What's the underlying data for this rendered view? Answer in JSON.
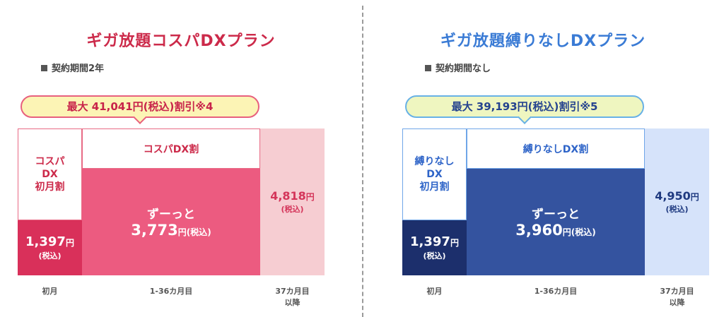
{
  "left_plan": {
    "title": "ギガ放題コスパDXプラン",
    "contract": "契約期間2年",
    "discount_badge": "最大 41,041円(税込)割引※4",
    "first_month_promo_line1": "コスパ",
    "first_month_promo_line2": "DX",
    "first_month_promo_line3": "初月割",
    "main_promo": "コスパDX割",
    "first_month_price": "1,397",
    "first_month_yen": "円",
    "first_month_tax": "(税込)",
    "main_label": "ずーっと",
    "main_price": "3,773",
    "main_yen_tax": "円(税込)",
    "after_price": "4,818",
    "after_yen": "円",
    "after_tax": "(税込)",
    "label_first": "初月",
    "label_main": "1-36カ月目",
    "label_after_line1": "37カ月目",
    "label_after_line2": "以降"
  },
  "right_plan": {
    "title": "ギガ放題縛りなしDXプラン",
    "contract": "契約期間なし",
    "discount_badge": "最大 39,193円(税込)割引※5",
    "first_month_promo_line1": "縛りなし",
    "first_month_promo_line2": "DX",
    "first_month_promo_line3": "初月割",
    "main_promo": "縛りなしDX割",
    "first_month_price": "1,397",
    "first_month_yen": "円",
    "first_month_tax": "(税込)",
    "main_label": "ずーっと",
    "main_price": "3,960",
    "main_yen_tax": "円(税込)",
    "after_price": "4,950",
    "after_yen": "円",
    "after_tax": "(税込)",
    "label_first": "初月",
    "label_main": "1-36カ月目",
    "label_after_line1": "37カ月目",
    "label_after_line2": "以降"
  },
  "colors": {
    "left_accent": "#cc2a4a",
    "right_accent": "#3a7bd5",
    "left_first": "#d9305a",
    "left_main": "#ec5b80",
    "left_after": "#f6cdd2",
    "right_first": "#1c2f6c",
    "right_main": "#34539f",
    "right_after": "#d6e3fa"
  }
}
